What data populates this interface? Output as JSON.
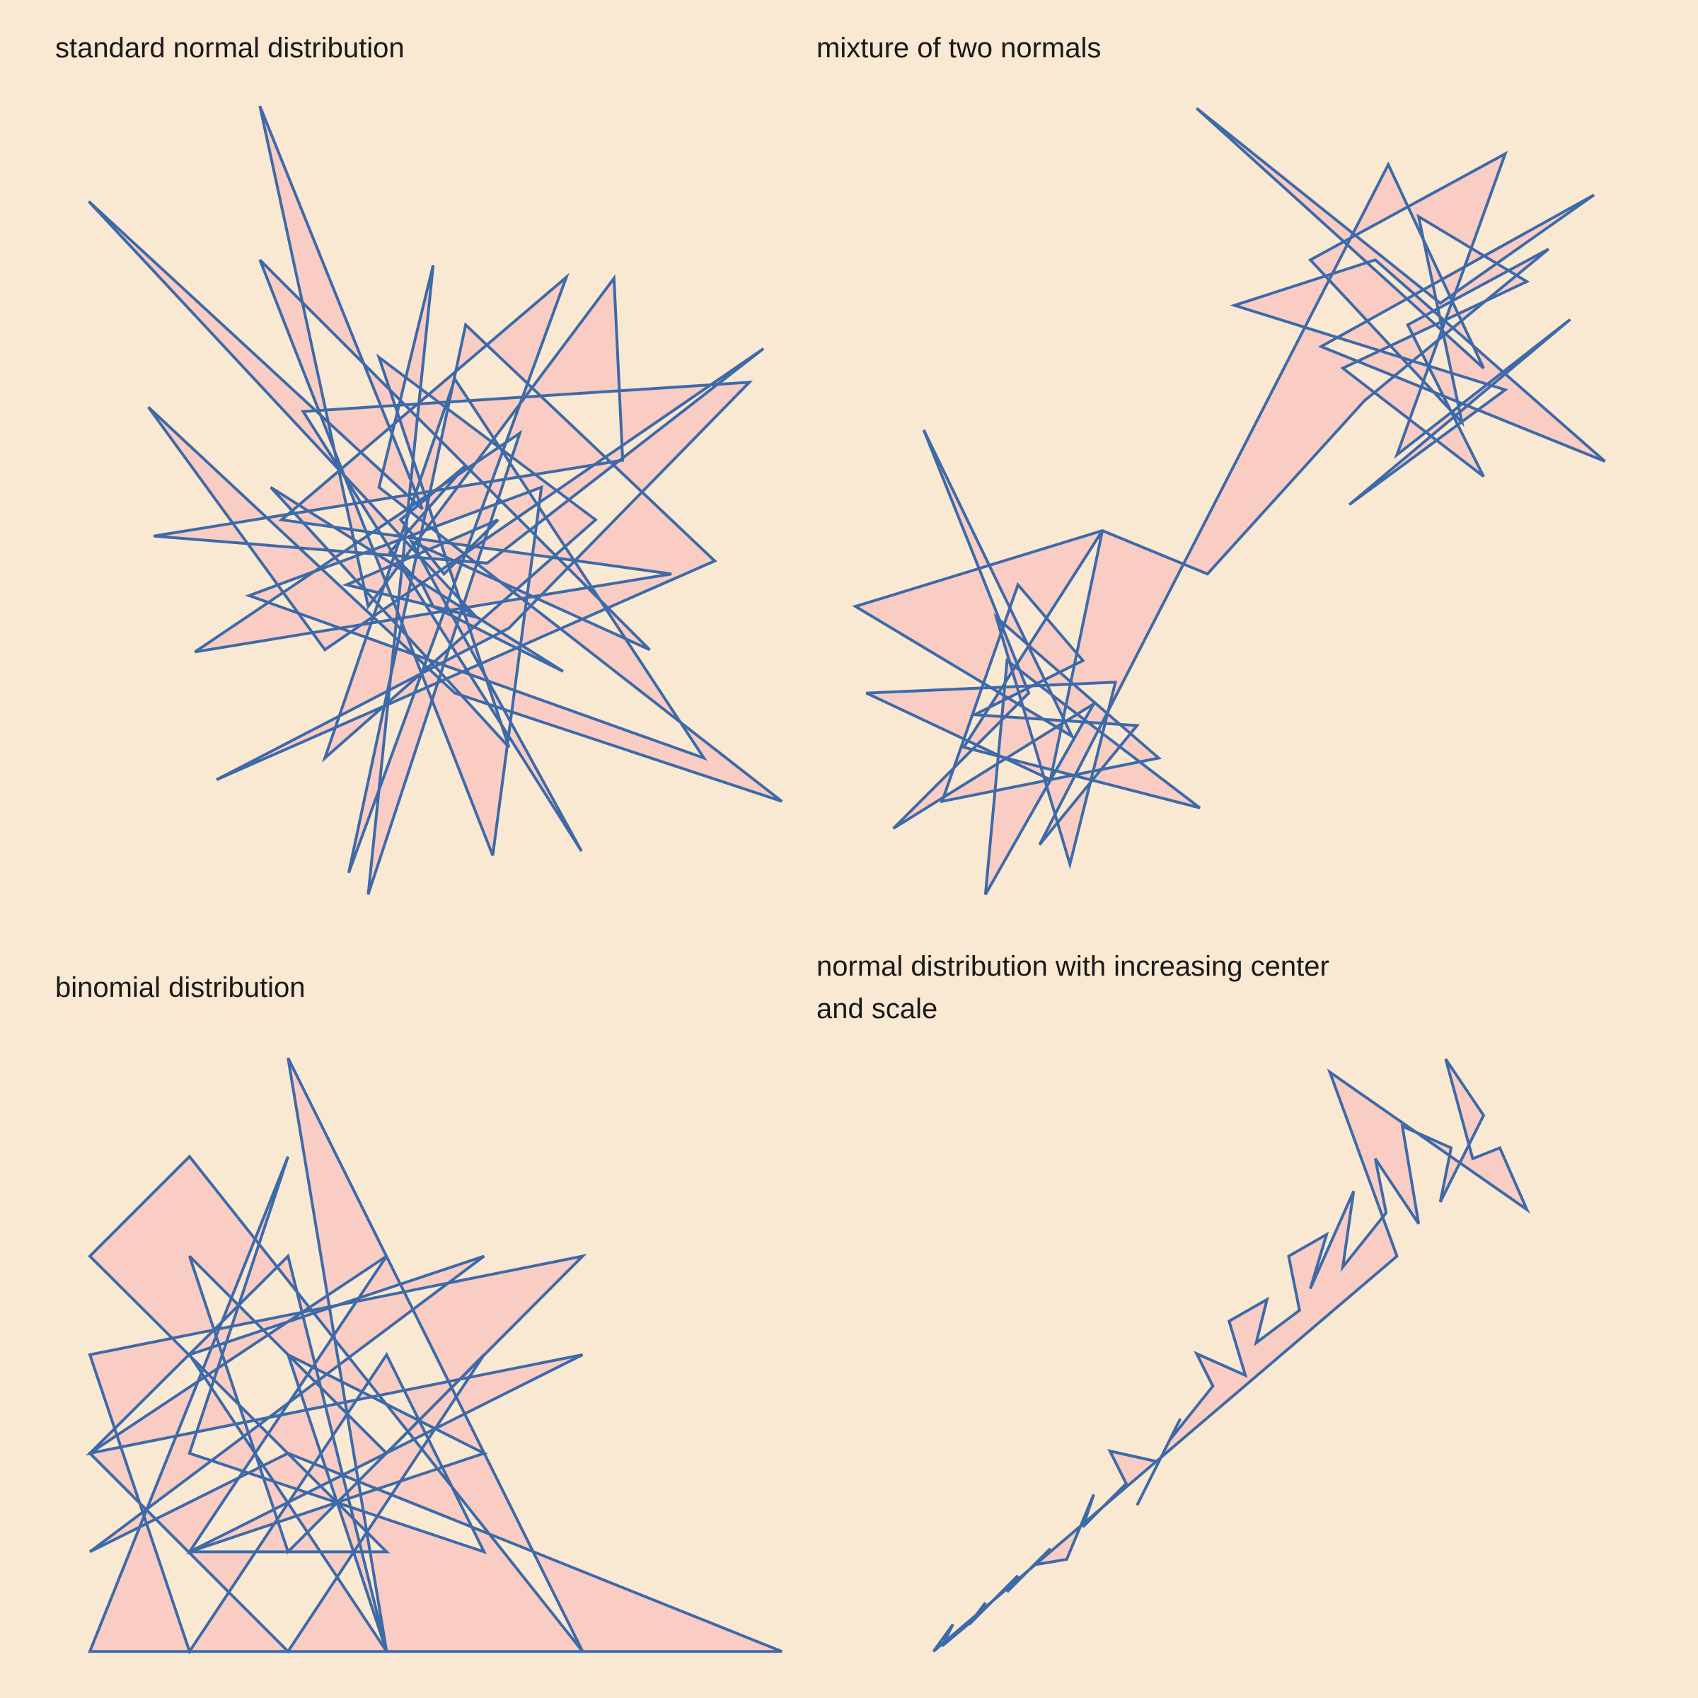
{
  "chart_data": [
    {
      "type": "polygon",
      "title": "standard normal distribution",
      "color": "#3d6aa8",
      "fill": "#f9ccc4",
      "xlim": [
        0,
        700
      ],
      "ylim": [
        0,
        760
      ],
      "x": [
        22,
        330,
        180,
        280,
        507,
        515,
        82,
        390,
        645,
        240,
        77,
        360,
        662,
        290,
        340,
        280,
        420,
        120,
        560,
        200,
        463,
        262,
        370,
        600,
        140,
        410,
        632,
        220,
        477,
        320,
        540,
        180,
        395,
        440,
        170,
        590,
        360,
        240,
        490,
        290,
        410,
        190,
        460,
        340,
        330,
        300,
        370,
        310,
        350,
        400,
        260,
        380
      ],
      "y": [
        654,
        370,
        742,
        280,
        583,
        415,
        345,
        320,
        518,
        240,
        464,
        200,
        100,
        390,
        595,
        14,
        440,
        238,
        310,
        360,
        584,
        34,
        540,
        322,
        120,
        260,
        487,
        460,
        54,
        340,
        240,
        600,
        50,
        390,
        290,
        140,
        490,
        140,
        360,
        510,
        150,
        390,
        220,
        280,
        300,
        330,
        410,
        360,
        310,
        360,
        300,
        270
      ]
    },
    {
      "type": "polygon",
      "title": "mixture of two normals",
      "color": "#3d6aa8",
      "fill": "#f9ccc4",
      "xlim": [
        0,
        700
      ],
      "ylim": [
        0,
        760
      ],
      "x": [
        20,
        220,
        83,
        180,
        55,
        240,
        140,
        160,
        338,
        120,
        248,
        200,
        30,
        260,
        218,
        150,
        300,
        100,
        170,
        230,
        130,
        280,
        190,
        512,
        600,
        335,
        560,
        702,
        450,
        712,
        500,
        370,
        620,
        476,
        680,
        520,
        620,
        440,
        580,
        540,
        640,
        470,
        600,
        530,
        660,
        490,
        345,
        248
      ],
      "y": [
        280,
        160,
        443,
        200,
        75,
        190,
        14,
        230,
        94,
        150,
        350,
        120,
        200,
        210,
        42,
        270,
        140,
        100,
        300,
        230,
        180,
        170,
        60,
        688,
        500,
        740,
        560,
        660,
        520,
        414,
        600,
        558,
        480,
        374,
        545,
        420,
        698,
        600,
        450,
        640,
        580,
        500,
        400,
        540,
        610,
        470,
        310,
        350
      ]
    },
    {
      "type": "polygon",
      "title": "binomial distribution",
      "color": "#3d6aa8",
      "fill": "#f9ccc4",
      "xlim": [
        0,
        700
      ],
      "ylim": [
        0,
        700
      ],
      "x": [
        206,
        478,
        115,
        23,
        297,
        115,
        478,
        23,
        206,
        297,
        115,
        387,
        23,
        206,
        662,
        23,
        206,
        115,
        387,
        297,
        115,
        23,
        478,
        206,
        115,
        297,
        387,
        206,
        23,
        297,
        115,
        387,
        206,
        297
      ],
      "y": [
        563,
        15,
        472,
        380,
        107,
        107,
        289,
        198,
        380,
        15,
        289,
        380,
        107,
        198,
        15,
        15,
        472,
        198,
        107,
        289,
        15,
        289,
        380,
        107,
        380,
        198,
        289,
        15,
        198,
        380,
        107,
        198,
        289,
        15
      ]
    },
    {
      "type": "polygon",
      "title": "normal distribution with increasing center and scale",
      "color": "#3d6aa8",
      "fill": "#f9ccc4",
      "xlim": [
        0,
        700
      ],
      "ylim": [
        0,
        700
      ],
      "x": [
        92,
        110,
        100,
        130,
        140,
        125,
        170,
        160,
        200,
        185,
        215,
        240,
        230,
        270,
        255,
        300,
        280,
        320,
        310,
        350,
        335,
        380,
        365,
        400,
        390,
        430,
        420,
        455,
        440,
        480,
        470,
        510,
        500,
        540,
        525,
        570,
        560,
        600,
        565,
        590,
        615,
        640,
        458,
        520
      ],
      "y": [
        15,
        40,
        20,
        45,
        60,
        40,
        85,
        70,
        110,
        95,
        100,
        160,
        130,
        170,
        200,
        190,
        150,
        230,
        210,
        260,
        290,
        270,
        320,
        340,
        300,
        330,
        380,
        400,
        350,
        440,
        370,
        420,
        470,
        410,
        500,
        480,
        430,
        510,
        562,
        470,
        480,
        423,
        550,
        380
      ]
    }
  ]
}
